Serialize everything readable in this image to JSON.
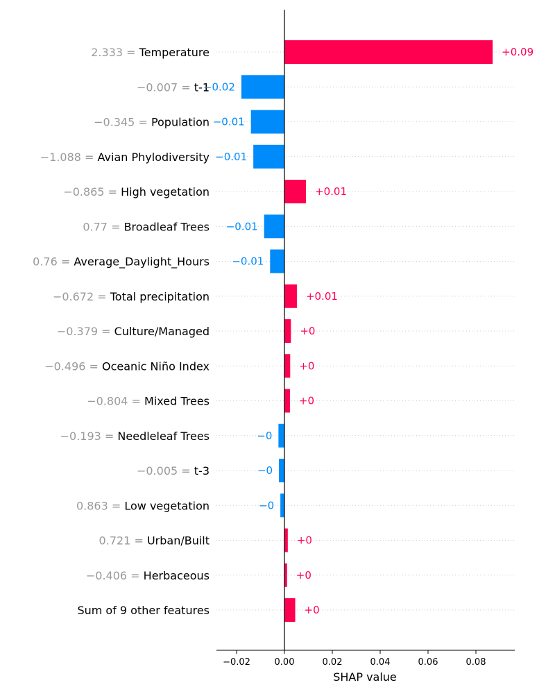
{
  "chart_data": {
    "type": "bar",
    "xlabel": "SHAP value",
    "xlim": [
      -0.029,
      0.098
    ],
    "xticks": [
      {
        "value": -0.02,
        "label": "−0.02"
      },
      {
        "value": 0.0,
        "label": "0.00"
      },
      {
        "value": 0.02,
        "label": "0.02"
      },
      {
        "value": 0.04,
        "label": "0.04"
      },
      {
        "value": 0.06,
        "label": "0.06"
      },
      {
        "value": 0.08,
        "label": "0.08"
      }
    ],
    "colors": {
      "positive": "#ff0051",
      "negative": "#008bfb",
      "feature_value": "#999999"
    },
    "features": [
      {
        "value_text": "2.333",
        "name": "Temperature",
        "shap": 0.087,
        "label": "+0.09"
      },
      {
        "value_text": "−0.007",
        "name": "t-1",
        "shap": -0.018,
        "label": "−0.02"
      },
      {
        "value_text": "−0.345",
        "name": "Population",
        "shap": -0.014,
        "label": "−0.01"
      },
      {
        "value_text": "−1.088",
        "name": "Avian Phylodiversity",
        "shap": -0.013,
        "label": "−0.01"
      },
      {
        "value_text": "−0.865",
        "name": "High vegetation",
        "shap": 0.009,
        "label": "+0.01"
      },
      {
        "value_text": "0.77",
        "name": "Broadleaf Trees",
        "shap": -0.0085,
        "label": "−0.01"
      },
      {
        "value_text": "0.76",
        "name": "Average_Daylight_Hours",
        "shap": -0.006,
        "label": "−0.01"
      },
      {
        "value_text": "−0.672",
        "name": "Total precipitation",
        "shap": 0.0052,
        "label": "+0.01"
      },
      {
        "value_text": "−0.379",
        "name": "Culture/Managed",
        "shap": 0.0027,
        "label": "+0"
      },
      {
        "value_text": "−0.496",
        "name": "Oceanic Niño Index",
        "shap": 0.0024,
        "label": "+0"
      },
      {
        "value_text": "−0.804",
        "name": "Mixed Trees",
        "shap": 0.0023,
        "label": "+0"
      },
      {
        "value_text": "−0.193",
        "name": "Needleleaf Trees",
        "shap": -0.0025,
        "label": "−0"
      },
      {
        "value_text": "−0.005",
        "name": "t-3",
        "shap": -0.0023,
        "label": "−0"
      },
      {
        "value_text": "0.863",
        "name": "Low vegetation",
        "shap": -0.0017,
        "label": "−0"
      },
      {
        "value_text": "0.721",
        "name": "Urban/Built",
        "shap": 0.0014,
        "label": "+0"
      },
      {
        "value_text": "−0.406",
        "name": "Herbaceous",
        "shap": 0.0011,
        "label": "+0"
      },
      {
        "value_text": "",
        "name": "Sum of 9 other features",
        "shap": 0.0045,
        "label": "+0"
      }
    ]
  }
}
